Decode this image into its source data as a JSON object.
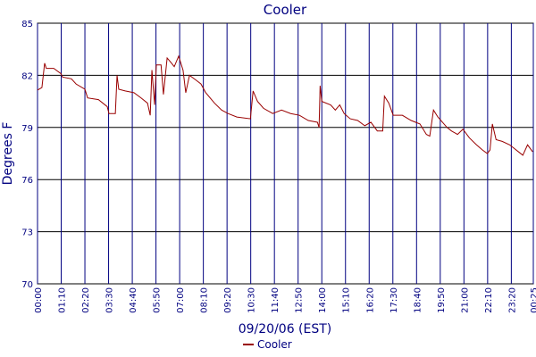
{
  "chart_data": {
    "type": "line",
    "title": "Cooler",
    "x_label": "09/20/06 (EST)",
    "y_label": "Degrees F",
    "xlim": [
      0,
      1465
    ],
    "ylim": [
      70,
      85
    ],
    "yticks": [
      70,
      73,
      76,
      79,
      82,
      85
    ],
    "grid": true,
    "legend": "bottom",
    "xticks": [
      {
        "value": 0,
        "label": "00:00"
      },
      {
        "value": 70,
        "label": "01:10"
      },
      {
        "value": 140,
        "label": "02:20"
      },
      {
        "value": 210,
        "label": "03:30"
      },
      {
        "value": 280,
        "label": "04:40"
      },
      {
        "value": 350,
        "label": "05:50"
      },
      {
        "value": 420,
        "label": "07:00"
      },
      {
        "value": 490,
        "label": "08:10"
      },
      {
        "value": 560,
        "label": "09:20"
      },
      {
        "value": 630,
        "label": "10:30"
      },
      {
        "value": 700,
        "label": "11:40"
      },
      {
        "value": 770,
        "label": "12:50"
      },
      {
        "value": 840,
        "label": "14:00"
      },
      {
        "value": 910,
        "label": "15:10"
      },
      {
        "value": 980,
        "label": "16:20"
      },
      {
        "value": 1050,
        "label": "17:30"
      },
      {
        "value": 1120,
        "label": "18:40"
      },
      {
        "value": 1190,
        "label": "19:50"
      },
      {
        "value": 1260,
        "label": "21:00"
      },
      {
        "value": 1330,
        "label": "22:10"
      },
      {
        "value": 1400,
        "label": "23:20"
      },
      {
        "value": 1465,
        "label": "00:25"
      }
    ],
    "x": [
      0,
      13,
      21,
      26,
      48,
      69,
      74,
      100,
      114,
      140,
      148,
      180,
      193,
      206,
      211,
      230,
      235,
      240,
      259,
      285,
      306,
      325,
      333,
      338,
      346,
      351,
      365,
      372,
      383,
      396,
      404,
      417,
      430,
      438,
      449,
      470,
      483,
      497,
      523,
      544,
      563,
      589,
      629,
      637,
      650,
      668,
      695,
      721,
      748,
      774,
      800,
      827,
      832,
      835,
      840,
      866,
      880,
      893,
      906,
      924,
      946,
      967,
      985,
      1004,
      1020,
      1025,
      1038,
      1051,
      1078,
      1104,
      1130,
      1149,
      1159,
      1170,
      1183,
      1210,
      1223,
      1241,
      1257,
      1276,
      1297,
      1315,
      1329,
      1337,
      1344,
      1355,
      1373,
      1395,
      1408,
      1421,
      1434,
      1448,
      1463
    ],
    "series": [
      {
        "name": "Cooler",
        "color": "#990000",
        "values": [
          81.15,
          81.3,
          82.7,
          82.4,
          82.4,
          82.1,
          81.9,
          81.8,
          81.5,
          81.2,
          80.7,
          80.6,
          80.4,
          80.2,
          79.8,
          79.8,
          82.0,
          81.2,
          81.1,
          81.0,
          80.7,
          80.4,
          79.7,
          82.3,
          80.3,
          82.6,
          82.6,
          80.9,
          83.0,
          82.7,
          82.5,
          83.1,
          82.3,
          81.0,
          82.0,
          81.7,
          81.5,
          81.0,
          80.4,
          80.0,
          79.8,
          79.6,
          79.5,
          81.1,
          80.5,
          80.1,
          79.8,
          80.0,
          79.8,
          79.7,
          79.4,
          79.3,
          79.0,
          81.4,
          80.5,
          80.3,
          80.0,
          80.3,
          79.8,
          79.5,
          79.4,
          79.1,
          79.3,
          78.8,
          78.8,
          80.8,
          80.4,
          79.7,
          79.7,
          79.4,
          79.2,
          78.6,
          78.5,
          80.0,
          79.6,
          79.0,
          78.8,
          78.6,
          78.9,
          78.4,
          78.0,
          77.7,
          77.5,
          77.7,
          79.2,
          78.3,
          78.2,
          78.0,
          77.8,
          77.6,
          77.4,
          78.0,
          77.6
        ]
      }
    ]
  }
}
